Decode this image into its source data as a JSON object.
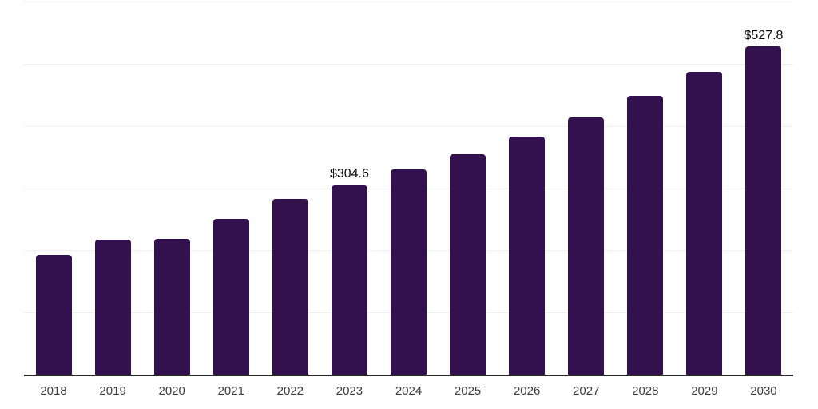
{
  "chart_data": {
    "type": "bar",
    "title": "",
    "xlabel": "",
    "ylabel": "",
    "categories": [
      "2018",
      "2019",
      "2020",
      "2021",
      "2022",
      "2023",
      "2024",
      "2025",
      "2026",
      "2027",
      "2028",
      "2029",
      "2030"
    ],
    "values": [
      193,
      217,
      218,
      251,
      283,
      304.6,
      330,
      355,
      383,
      414,
      449,
      487,
      527.8
    ],
    "bar_labels": {
      "2023": "$304.6",
      "2030": "$527.8"
    },
    "ylim": [
      0,
      600
    ],
    "gridline_interval": 100,
    "grid": true,
    "legend": false,
    "y_axis_labels_visible": false,
    "colors": {
      "bar": "#33114F",
      "axis": "#2B2B2B",
      "gridline": "#F1EFF1",
      "value_label": "#0B0B0B",
      "tick_label": "#3D3D3D",
      "background": "#FFFFFF"
    }
  }
}
